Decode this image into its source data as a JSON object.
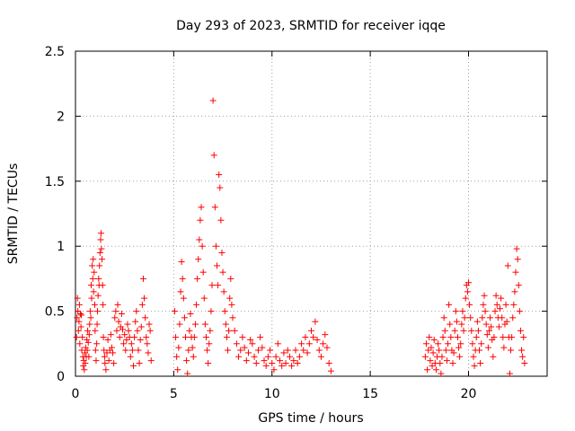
{
  "chart_data": {
    "type": "scatter",
    "title": "Day 293 of 2023, SRMTID for receiver iqqe",
    "xlabel": "GPS time / hours",
    "ylabel": "SRMTID / TECUs",
    "xlim": [
      0,
      24
    ],
    "ylim": [
      0,
      2.5
    ],
    "xticks": [
      0,
      5,
      10,
      15,
      20
    ],
    "xtick_labels": [
      "0",
      "5",
      "10",
      "15",
      "20"
    ],
    "yticks": [
      0,
      0.5,
      1,
      1.5,
      2,
      2.5
    ],
    "ytick_labels": [
      "0",
      "0.5",
      "1",
      "1.5",
      "2",
      "2.5"
    ],
    "grid": true,
    "marker": "+",
    "color": "#ff0000",
    "series": [
      {
        "name": "SRMTID",
        "points": [
          [
            0.05,
            0.3
          ],
          [
            0.08,
            0.45
          ],
          [
            0.1,
            0.6
          ],
          [
            0.12,
            0.5
          ],
          [
            0.15,
            0.35
          ],
          [
            0.18,
            0.42
          ],
          [
            0.2,
            0.55
          ],
          [
            0.22,
            0.25
          ],
          [
            0.25,
            0.48
          ],
          [
            0.28,
            0.38
          ],
          [
            0.3,
            0.47
          ],
          [
            0.32,
            0.2
          ],
          [
            0.35,
            0.3
          ],
          [
            0.38,
            0.15
          ],
          [
            0.4,
            0.08
          ],
          [
            0.42,
            0.12
          ],
          [
            0.45,
            0.05
          ],
          [
            0.48,
            0.18
          ],
          [
            0.5,
            0.1
          ],
          [
            0.52,
            0.22
          ],
          [
            0.55,
            0.15
          ],
          [
            0.58,
            0.28
          ],
          [
            0.6,
            0.2
          ],
          [
            0.62,
            0.35
          ],
          [
            0.65,
            0.26
          ],
          [
            0.68,
            0.15
          ],
          [
            0.7,
            0.32
          ],
          [
            0.72,
            0.4
          ],
          [
            0.75,
            0.5
          ],
          [
            0.78,
            0.45
          ],
          [
            0.8,
            0.7
          ],
          [
            0.82,
            0.6
          ],
          [
            0.85,
            0.85
          ],
          [
            0.88,
            0.75
          ],
          [
            0.9,
            0.9
          ],
          [
            0.92,
            0.65
          ],
          [
            0.95,
            0.8
          ],
          [
            0.98,
            0.55
          ],
          [
            1.0,
            0.35
          ],
          [
            1.02,
            0.2
          ],
          [
            1.05,
            0.12
          ],
          [
            1.08,
            0.25
          ],
          [
            1.1,
            0.4
          ],
          [
            1.12,
            0.5
          ],
          [
            1.15,
            0.62
          ],
          [
            1.18,
            0.75
          ],
          [
            1.2,
            0.7
          ],
          [
            1.22,
            0.85
          ],
          [
            1.25,
            0.95
          ],
          [
            1.28,
            1.05
          ],
          [
            1.3,
            1.1
          ],
          [
            1.32,
            0.98
          ],
          [
            1.35,
            0.9
          ],
          [
            1.38,
            0.7
          ],
          [
            1.4,
            0.55
          ],
          [
            1.42,
            0.3
          ],
          [
            1.45,
            0.2
          ],
          [
            1.48,
            0.15
          ],
          [
            1.5,
            0.1
          ],
          [
            1.55,
            0.05
          ],
          [
            1.6,
            0.18
          ],
          [
            1.65,
            0.28
          ],
          [
            1.7,
            0.12
          ],
          [
            1.75,
            0.2
          ],
          [
            1.8,
            0.32
          ],
          [
            1.85,
            0.22
          ],
          [
            1.9,
            0.18
          ],
          [
            1.95,
            0.1
          ],
          [
            2.0,
            0.45
          ],
          [
            2.05,
            0.5
          ],
          [
            2.1,
            0.35
          ],
          [
            2.15,
            0.55
          ],
          [
            2.2,
            0.42
          ],
          [
            2.25,
            0.3
          ],
          [
            2.3,
            0.38
          ],
          [
            2.35,
            0.48
          ],
          [
            2.4,
            0.36
          ],
          [
            2.45,
            0.25
          ],
          [
            2.5,
            0.32
          ],
          [
            2.55,
            0.2
          ],
          [
            2.6,
            0.28
          ],
          [
            2.65,
            0.4
          ],
          [
            2.7,
            0.35
          ],
          [
            2.75,
            0.3
          ],
          [
            2.8,
            0.15
          ],
          [
            2.85,
            0.25
          ],
          [
            2.9,
            0.2
          ],
          [
            2.95,
            0.08
          ],
          [
            3.0,
            0.3
          ],
          [
            3.05,
            0.42
          ],
          [
            3.1,
            0.5
          ],
          [
            3.15,
            0.35
          ],
          [
            3.2,
            0.2
          ],
          [
            3.25,
            0.1
          ],
          [
            3.3,
            0.28
          ],
          [
            3.35,
            0.38
          ],
          [
            3.4,
            0.55
          ],
          [
            3.45,
            0.75
          ],
          [
            3.5,
            0.6
          ],
          [
            3.55,
            0.45
          ],
          [
            3.6,
            0.3
          ],
          [
            3.65,
            0.25
          ],
          [
            3.7,
            0.18
          ],
          [
            3.75,
            0.4
          ],
          [
            3.8,
            0.35
          ],
          [
            3.85,
            0.12
          ],
          [
            5.05,
            0.5
          ],
          [
            5.1,
            0.3
          ],
          [
            5.15,
            0.15
          ],
          [
            5.2,
            0.05
          ],
          [
            5.25,
            0.22
          ],
          [
            5.3,
            0.4
          ],
          [
            5.35,
            0.65
          ],
          [
            5.4,
            0.88
          ],
          [
            5.45,
            0.75
          ],
          [
            5.5,
            0.6
          ],
          [
            5.55,
            0.45
          ],
          [
            5.6,
            0.3
          ],
          [
            5.65,
            0.12
          ],
          [
            5.7,
            0.02
          ],
          [
            5.75,
            0.2
          ],
          [
            5.8,
            0.35
          ],
          [
            5.85,
            0.48
          ],
          [
            5.9,
            0.3
          ],
          [
            5.95,
            0.22
          ],
          [
            6.0,
            0.15
          ],
          [
            6.05,
            0.3
          ],
          [
            6.1,
            0.4
          ],
          [
            6.15,
            0.55
          ],
          [
            6.2,
            0.75
          ],
          [
            6.25,
            0.9
          ],
          [
            6.3,
            1.05
          ],
          [
            6.35,
            1.2
          ],
          [
            6.4,
            1.3
          ],
          [
            6.45,
            1.0
          ],
          [
            6.5,
            0.8
          ],
          [
            6.55,
            0.6
          ],
          [
            6.6,
            0.4
          ],
          [
            6.65,
            0.3
          ],
          [
            6.7,
            0.2
          ],
          [
            6.75,
            0.1
          ],
          [
            6.8,
            0.25
          ],
          [
            6.85,
            0.35
          ],
          [
            6.9,
            0.5
          ],
          [
            6.95,
            0.7
          ],
          [
            7.0,
            2.12
          ],
          [
            7.05,
            1.7
          ],
          [
            7.1,
            1.3
          ],
          [
            7.15,
            1.0
          ],
          [
            7.2,
            0.85
          ],
          [
            7.25,
            0.7
          ],
          [
            7.3,
            1.55
          ],
          [
            7.35,
            1.45
          ],
          [
            7.4,
            1.2
          ],
          [
            7.45,
            0.95
          ],
          [
            7.5,
            0.8
          ],
          [
            7.55,
            0.65
          ],
          [
            7.6,
            0.5
          ],
          [
            7.65,
            0.4
          ],
          [
            7.7,
            0.3
          ],
          [
            7.75,
            0.2
          ],
          [
            7.8,
            0.35
          ],
          [
            7.85,
            0.6
          ],
          [
            7.9,
            0.75
          ],
          [
            7.95,
            0.55
          ],
          [
            8.0,
            0.45
          ],
          [
            8.1,
            0.35
          ],
          [
            8.2,
            0.25
          ],
          [
            8.3,
            0.15
          ],
          [
            8.4,
            0.2
          ],
          [
            8.5,
            0.3
          ],
          [
            8.6,
            0.22
          ],
          [
            8.7,
            0.12
          ],
          [
            8.8,
            0.18
          ],
          [
            8.9,
            0.28
          ],
          [
            9.0,
            0.25
          ],
          [
            9.1,
            0.15
          ],
          [
            9.2,
            0.1
          ],
          [
            9.3,
            0.2
          ],
          [
            9.4,
            0.3
          ],
          [
            9.5,
            0.22
          ],
          [
            9.6,
            0.12
          ],
          [
            9.7,
            0.08
          ],
          [
            9.8,
            0.15
          ],
          [
            9.9,
            0.2
          ],
          [
            10.0,
            0.1
          ],
          [
            10.1,
            0.05
          ],
          [
            10.2,
            0.15
          ],
          [
            10.3,
            0.25
          ],
          [
            10.4,
            0.12
          ],
          [
            10.5,
            0.08
          ],
          [
            10.6,
            0.18
          ],
          [
            10.7,
            0.1
          ],
          [
            10.8,
            0.2
          ],
          [
            10.9,
            0.15
          ],
          [
            11.0,
            0.08
          ],
          [
            11.1,
            0.12
          ],
          [
            11.2,
            0.2
          ],
          [
            11.3,
            0.1
          ],
          [
            11.4,
            0.15
          ],
          [
            11.5,
            0.25
          ],
          [
            11.6,
            0.2
          ],
          [
            11.7,
            0.3
          ],
          [
            11.8,
            0.18
          ],
          [
            11.9,
            0.25
          ],
          [
            12.0,
            0.35
          ],
          [
            12.1,
            0.3
          ],
          [
            12.2,
            0.42
          ],
          [
            12.3,
            0.28
          ],
          [
            12.4,
            0.2
          ],
          [
            12.5,
            0.15
          ],
          [
            12.6,
            0.25
          ],
          [
            12.7,
            0.32
          ],
          [
            12.8,
            0.22
          ],
          [
            12.9,
            0.1
          ],
          [
            13.0,
            0.04
          ],
          [
            17.8,
            0.15
          ],
          [
            17.85,
            0.25
          ],
          [
            17.9,
            0.05
          ],
          [
            17.95,
            0.2
          ],
          [
            18.0,
            0.3
          ],
          [
            18.05,
            0.12
          ],
          [
            18.1,
            0.22
          ],
          [
            18.15,
            0.08
          ],
          [
            18.2,
            0.18
          ],
          [
            18.25,
            0.28
          ],
          [
            18.3,
            0.1
          ],
          [
            18.35,
            0.05
          ],
          [
            18.4,
            0.15
          ],
          [
            18.45,
            0.25
          ],
          [
            18.5,
            0.2
          ],
          [
            18.55,
            0.1
          ],
          [
            18.6,
            0.02
          ],
          [
            18.65,
            0.15
          ],
          [
            18.7,
            0.3
          ],
          [
            18.75,
            0.45
          ],
          [
            18.8,
            0.35
          ],
          [
            18.85,
            0.2
          ],
          [
            18.9,
            0.12
          ],
          [
            18.95,
            0.25
          ],
          [
            19.0,
            0.55
          ],
          [
            19.05,
            0.4
          ],
          [
            19.1,
            0.3
          ],
          [
            19.15,
            0.2
          ],
          [
            19.2,
            0.1
          ],
          [
            19.25,
            0.18
          ],
          [
            19.3,
            0.35
          ],
          [
            19.35,
            0.5
          ],
          [
            19.4,
            0.42
          ],
          [
            19.45,
            0.3
          ],
          [
            19.5,
            0.22
          ],
          [
            19.55,
            0.15
          ],
          [
            19.6,
            0.25
          ],
          [
            19.65,
            0.4
          ],
          [
            19.7,
            0.5
          ],
          [
            19.75,
            0.35
          ],
          [
            19.8,
            0.45
          ],
          [
            19.85,
            0.6
          ],
          [
            19.9,
            0.7
          ],
          [
            19.95,
            0.65
          ],
          [
            20.0,
            0.72
          ],
          [
            20.05,
            0.55
          ],
          [
            20.1,
            0.45
          ],
          [
            20.15,
            0.35
          ],
          [
            20.2,
            0.25
          ],
          [
            20.25,
            0.15
          ],
          [
            20.3,
            0.08
          ],
          [
            20.35,
            0.2
          ],
          [
            20.4,
            0.3
          ],
          [
            20.45,
            0.42
          ],
          [
            20.5,
            0.35
          ],
          [
            20.55,
            0.2
          ],
          [
            20.6,
            0.1
          ],
          [
            20.65,
            0.25
          ],
          [
            20.7,
            0.45
          ],
          [
            20.75,
            0.55
          ],
          [
            20.8,
            0.62
          ],
          [
            20.85,
            0.5
          ],
          [
            20.9,
            0.4
          ],
          [
            20.95,
            0.32
          ],
          [
            21.0,
            0.22
          ],
          [
            21.05,
            0.35
          ],
          [
            21.1,
            0.45
          ],
          [
            21.15,
            0.38
          ],
          [
            21.2,
            0.28
          ],
          [
            21.25,
            0.15
          ],
          [
            21.3,
            0.3
          ],
          [
            21.35,
            0.5
          ],
          [
            21.4,
            0.62
          ],
          [
            21.45,
            0.55
          ],
          [
            21.5,
            0.45
          ],
          [
            21.55,
            0.38
          ],
          [
            21.6,
            0.52
          ],
          [
            21.65,
            0.6
          ],
          [
            21.7,
            0.45
          ],
          [
            21.75,
            0.3
          ],
          [
            21.8,
            0.22
          ],
          [
            21.85,
            0.4
          ],
          [
            21.9,
            0.55
          ],
          [
            21.95,
            0.42
          ],
          [
            22.0,
            0.85
          ],
          [
            22.05,
            0.3
          ],
          [
            22.1,
            0.02
          ],
          [
            22.15,
            0.2
          ],
          [
            22.2,
            0.3
          ],
          [
            22.25,
            0.45
          ],
          [
            22.3,
            0.55
          ],
          [
            22.35,
            0.65
          ],
          [
            22.4,
            0.8
          ],
          [
            22.45,
            0.98
          ],
          [
            22.5,
            0.9
          ],
          [
            22.55,
            0.7
          ],
          [
            22.6,
            0.5
          ],
          [
            22.65,
            0.35
          ],
          [
            22.7,
            0.2
          ],
          [
            22.75,
            0.15
          ],
          [
            22.8,
            0.3
          ],
          [
            22.85,
            0.1
          ]
        ]
      }
    ]
  }
}
